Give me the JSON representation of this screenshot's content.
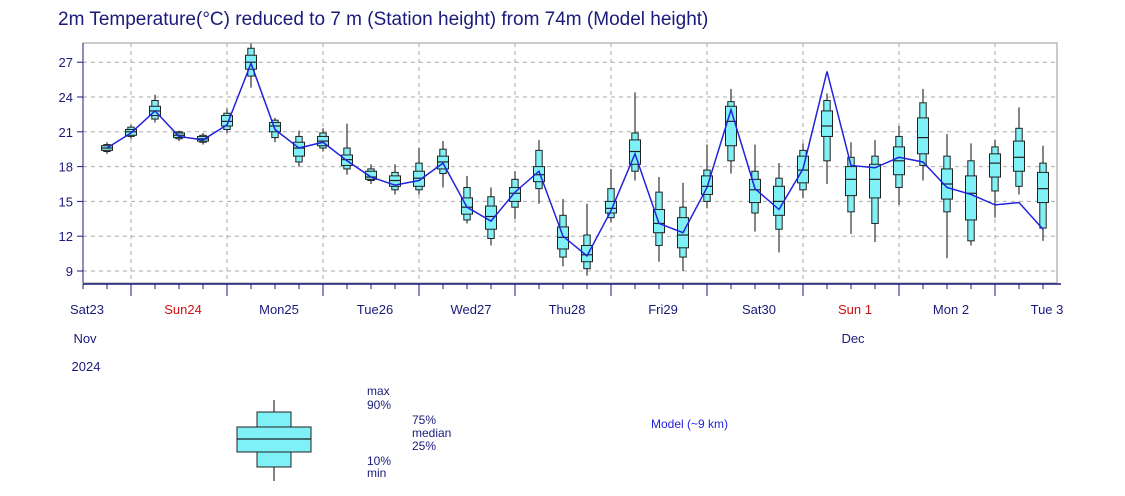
{
  "title": "2m Temperature(°C) reduced to 7 m (Station height) from 74m (Model height)",
  "colors": {
    "box": "#7ff0f5",
    "line": "#2222dd",
    "axis": "#1a1a7a",
    "grid": "#aaaaaa",
    "sunday": "#d01010"
  },
  "legend": {
    "max": "max",
    "p90": "90%",
    "p75": "75%",
    "median": "median",
    "p25": "25%",
    "p10": "10%",
    "min": "min",
    "model": "Model (~9 km)"
  },
  "chart_data": {
    "type": "boxplot",
    "title": "2m Temperature(°C) reduced to 7 m (Station height) from 74m (Model height)",
    "ylim": [
      7.5,
      28.5
    ],
    "yticks": [
      9,
      12,
      15,
      18,
      21,
      24,
      27
    ],
    "xlim": [
      0,
      10.25
    ],
    "grid": true,
    "day_labels": [
      {
        "x": 0,
        "label": "Sat23",
        "sunday": false
      },
      {
        "x": 1,
        "label": "Sun24",
        "sunday": true
      },
      {
        "x": 2,
        "label": "Mon25",
        "sunday": false
      },
      {
        "x": 3,
        "label": "Tue26",
        "sunday": false
      },
      {
        "x": 4,
        "label": "Wed27",
        "sunday": false
      },
      {
        "x": 5,
        "label": "Thu28",
        "sunday": false
      },
      {
        "x": 6,
        "label": "Fri29",
        "sunday": false
      },
      {
        "x": 7,
        "label": "Sat30",
        "sunday": false
      },
      {
        "x": 8,
        "label": "Sun 1",
        "sunday": true
      },
      {
        "x": 9,
        "label": "Mon 2",
        "sunday": false
      },
      {
        "x": 10,
        "label": "Tue 3",
        "sunday": false
      }
    ],
    "month_labels": [
      {
        "x": 0,
        "label": "Nov"
      },
      {
        "x": 8,
        "label": "Dec"
      }
    ],
    "year_label": {
      "x": 0,
      "label": "2024"
    },
    "ensemble": [
      {
        "t": 0.25,
        "min": 19.1,
        "p10": 19.3,
        "p25": 19.4,
        "median": 19.6,
        "p75": 19.8,
        "p90": 19.9,
        "max": 20.1
      },
      {
        "t": 0.5,
        "min": 20.4,
        "p10": 20.6,
        "p25": 20.7,
        "median": 21.0,
        "p75": 21.2,
        "p90": 21.4,
        "max": 21.6
      },
      {
        "t": 0.75,
        "min": 21.8,
        "p10": 22.1,
        "p25": 22.4,
        "median": 22.8,
        "p75": 23.2,
        "p90": 23.7,
        "max": 24.2
      },
      {
        "t": 1.0,
        "min": 20.2,
        "p10": 20.4,
        "p25": 20.5,
        "median": 20.7,
        "p75": 20.9,
        "p90": 21.0,
        "max": 21.1
      },
      {
        "t": 1.25,
        "min": 19.9,
        "p10": 20.1,
        "p25": 20.2,
        "median": 20.4,
        "p75": 20.6,
        "p90": 20.7,
        "max": 20.9
      },
      {
        "t": 1.5,
        "min": 20.9,
        "p10": 21.2,
        "p25": 21.5,
        "median": 21.9,
        "p75": 22.4,
        "p90": 22.6,
        "max": 23.0
      },
      {
        "t": 1.75,
        "min": 24.8,
        "p10": 25.8,
        "p25": 26.4,
        "median": 27.0,
        "p75": 27.6,
        "p90": 28.2,
        "max": 28.6
      },
      {
        "t": 2.0,
        "min": 20.1,
        "p10": 20.5,
        "p25": 21.0,
        "median": 21.5,
        "p75": 21.8,
        "p90": 22.0,
        "max": 22.2
      },
      {
        "t": 2.25,
        "min": 18.0,
        "p10": 18.4,
        "p25": 18.9,
        "median": 19.6,
        "p75": 20.1,
        "p90": 20.6,
        "max": 21.1
      },
      {
        "t": 2.5,
        "min": 19.3,
        "p10": 19.6,
        "p25": 19.8,
        "median": 20.2,
        "p75": 20.6,
        "p90": 20.9,
        "max": 21.3
      },
      {
        "t": 2.75,
        "min": 17.3,
        "p10": 17.8,
        "p25": 18.1,
        "median": 18.6,
        "p75": 19.0,
        "p90": 19.6,
        "max": 21.7
      },
      {
        "t": 3.0,
        "min": 16.5,
        "p10": 16.8,
        "p25": 16.9,
        "median": 17.1,
        "p75": 17.6,
        "p90": 17.8,
        "max": 18.2
      },
      {
        "t": 3.25,
        "min": 15.6,
        "p10": 16.0,
        "p25": 16.3,
        "median": 16.8,
        "p75": 17.2,
        "p90": 17.5,
        "max": 18.2
      },
      {
        "t": 3.5,
        "min": 15.6,
        "p10": 16.0,
        "p25": 16.3,
        "median": 17.0,
        "p75": 17.6,
        "p90": 18.3,
        "max": 19.6
      },
      {
        "t": 3.75,
        "min": 16.2,
        "p10": 17.4,
        "p25": 17.8,
        "median": 18.4,
        "p75": 18.9,
        "p90": 19.5,
        "max": 20.2
      },
      {
        "t": 4.0,
        "min": 13.1,
        "p10": 13.4,
        "p25": 13.9,
        "median": 14.5,
        "p75": 15.3,
        "p90": 16.2,
        "max": 17.2
      },
      {
        "t": 4.25,
        "min": 11.2,
        "p10": 11.8,
        "p25": 12.6,
        "median": 13.7,
        "p75": 14.6,
        "p90": 15.4,
        "max": 16.2
      },
      {
        "t": 4.5,
        "min": 13.5,
        "p10": 14.5,
        "p25": 15.0,
        "median": 15.7,
        "p75": 16.2,
        "p90": 16.9,
        "max": 17.6
      },
      {
        "t": 4.75,
        "min": 14.8,
        "p10": 16.1,
        "p25": 16.7,
        "median": 17.3,
        "p75": 18.0,
        "p90": 19.4,
        "max": 20.3
      },
      {
        "t": 5.0,
        "min": 9.4,
        "p10": 10.2,
        "p25": 10.9,
        "median": 11.9,
        "p75": 12.8,
        "p90": 13.8,
        "max": 15.2
      },
      {
        "t": 5.25,
        "min": 8.6,
        "p10": 9.2,
        "p25": 9.8,
        "median": 10.4,
        "p75": 11.2,
        "p90": 12.1,
        "max": 14.8
      },
      {
        "t": 5.5,
        "min": 13.2,
        "p10": 13.6,
        "p25": 14.0,
        "median": 14.4,
        "p75": 15.0,
        "p90": 16.1,
        "max": 17.8
      },
      {
        "t": 5.75,
        "min": 16.8,
        "p10": 17.6,
        "p25": 18.2,
        "median": 19.3,
        "p75": 20.3,
        "p90": 20.9,
        "max": 24.4
      },
      {
        "t": 6.0,
        "min": 9.8,
        "p10": 11.2,
        "p25": 12.3,
        "median": 13.1,
        "p75": 14.3,
        "p90": 15.8,
        "max": 17.1
      },
      {
        "t": 6.25,
        "min": 9.0,
        "p10": 10.2,
        "p25": 11.0,
        "median": 12.1,
        "p75": 13.6,
        "p90": 14.5,
        "max": 16.6
      },
      {
        "t": 6.5,
        "min": 14.4,
        "p10": 15.0,
        "p25": 15.6,
        "median": 16.3,
        "p75": 17.2,
        "p90": 17.7,
        "max": 19.9
      },
      {
        "t": 6.75,
        "min": 17.4,
        "p10": 18.5,
        "p25": 19.8,
        "median": 21.9,
        "p75": 23.2,
        "p90": 23.6,
        "max": 24.7
      },
      {
        "t": 7.0,
        "min": 12.4,
        "p10": 14.0,
        "p25": 14.9,
        "median": 16.0,
        "p75": 16.9,
        "p90": 17.6,
        "max": 19.9
      },
      {
        "t": 7.25,
        "min": 10.6,
        "p10": 12.6,
        "p25": 13.8,
        "median": 15.0,
        "p75": 16.3,
        "p90": 17.0,
        "max": 18.3
      },
      {
        "t": 7.5,
        "min": 15.3,
        "p10": 16.0,
        "p25": 16.6,
        "median": 17.7,
        "p75": 18.9,
        "p90": 19.4,
        "max": 20.0
      },
      {
        "t": 7.75,
        "min": 16.5,
        "p10": 18.5,
        "p25": 20.6,
        "median": 21.5,
        "p75": 22.8,
        "p90": 23.7,
        "max": 24.3
      },
      {
        "t": 8.0,
        "min": 12.2,
        "p10": 14.1,
        "p25": 15.5,
        "median": 16.9,
        "p75": 18.0,
        "p90": 18.8,
        "max": 20.1
      },
      {
        "t": 8.25,
        "min": 11.5,
        "p10": 13.1,
        "p25": 15.3,
        "median": 16.9,
        "p75": 18.2,
        "p90": 18.9,
        "max": 20.3
      },
      {
        "t": 8.5,
        "min": 14.7,
        "p10": 16.2,
        "p25": 17.3,
        "median": 18.5,
        "p75": 19.7,
        "p90": 20.6,
        "max": 21.5
      },
      {
        "t": 8.75,
        "min": 16.8,
        "p10": 18.1,
        "p25": 19.1,
        "median": 20.5,
        "p75": 22.2,
        "p90": 23.5,
        "max": 24.7
      },
      {
        "t": 9.0,
        "min": 10.1,
        "p10": 14.1,
        "p25": 15.2,
        "median": 16.5,
        "p75": 17.8,
        "p90": 18.9,
        "max": 20.8
      },
      {
        "t": 9.25,
        "min": 11.2,
        "p10": 11.6,
        "p25": 13.4,
        "median": 15.7,
        "p75": 17.2,
        "p90": 18.5,
        "max": 20.0
      },
      {
        "t": 9.5,
        "min": 13.6,
        "p10": 15.9,
        "p25": 17.1,
        "median": 18.3,
        "p75": 19.1,
        "p90": 19.7,
        "max": 20.3
      },
      {
        "t": 9.75,
        "min": 15.6,
        "p10": 16.3,
        "p25": 17.6,
        "median": 18.8,
        "p75": 20.2,
        "p90": 21.3,
        "max": 23.1
      },
      {
        "t": 10.0,
        "min": 11.6,
        "p10": 12.7,
        "p25": 14.9,
        "median": 16.1,
        "p75": 17.5,
        "p90": 18.3,
        "max": 19.8
      }
    ],
    "model_series": {
      "name": "Model (~9 km)",
      "points": [
        [
          0.25,
          19.6
        ],
        [
          0.5,
          20.9
        ],
        [
          0.75,
          22.8
        ],
        [
          1.0,
          20.6
        ],
        [
          1.25,
          20.3
        ],
        [
          1.5,
          21.6
        ],
        [
          1.75,
          26.9
        ],
        [
          2.0,
          21.2
        ],
        [
          2.25,
          19.6
        ],
        [
          2.5,
          20.1
        ],
        [
          2.75,
          18.5
        ],
        [
          3.0,
          17.1
        ],
        [
          3.25,
          16.4
        ],
        [
          3.5,
          16.8
        ],
        [
          3.75,
          18.3
        ],
        [
          4.0,
          14.5
        ],
        [
          4.25,
          13.3
        ],
        [
          4.5,
          15.8
        ],
        [
          4.75,
          17.6
        ],
        [
          5.0,
          12.0
        ],
        [
          5.25,
          10.3
        ],
        [
          5.5,
          14.2
        ],
        [
          5.75,
          19.1
        ],
        [
          6.0,
          13.1
        ],
        [
          6.25,
          12.3
        ],
        [
          6.5,
          16.2
        ],
        [
          6.75,
          22.9
        ],
        [
          7.0,
          16.1
        ],
        [
          7.25,
          14.3
        ],
        [
          7.5,
          17.8
        ],
        [
          7.75,
          26.2
        ],
        [
          8.0,
          18.1
        ],
        [
          8.25,
          17.9
        ],
        [
          8.5,
          18.8
        ],
        [
          8.75,
          18.4
        ],
        [
          9.0,
          16.2
        ],
        [
          9.25,
          15.6
        ],
        [
          9.5,
          14.7
        ],
        [
          9.75,
          14.9
        ],
        [
          10.0,
          12.6
        ]
      ]
    }
  }
}
